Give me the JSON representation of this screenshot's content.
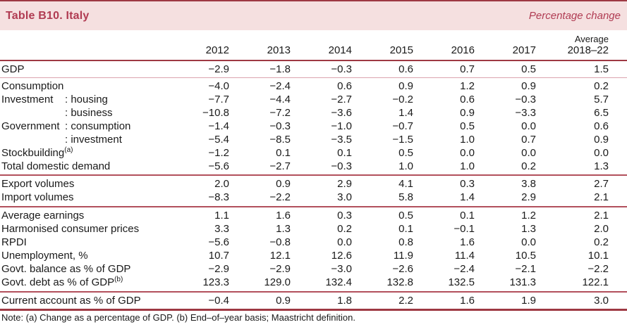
{
  "header": {
    "title": "Table B10. Italy",
    "subtitle": "Percentage change"
  },
  "colors": {
    "accent": "#b03b52",
    "band_bg": "#f5e0e0",
    "line_dark": "#9e3943",
    "line_mid": "#b2505c",
    "line_light": "#dba3ad"
  },
  "table": {
    "year_headers": [
      "2012",
      "2013",
      "2014",
      "2015",
      "2016",
      "2017"
    ],
    "avg_header_line1": "Average",
    "avg_header_line2": "2018–22",
    "sections": [
      {
        "id": "gdp",
        "rows": [
          {
            "label": "GDP",
            "sup": "",
            "sub": "",
            "values": [
              "−2.9",
              "−1.8",
              "−0.3",
              "0.6",
              "0.7",
              "0.5",
              "1.5"
            ]
          }
        ]
      },
      {
        "id": "demand",
        "rows": [
          {
            "label": "Consumption",
            "sup": "",
            "sub": "",
            "values": [
              "−4.0",
              "−2.4",
              "0.6",
              "0.9",
              "1.2",
              "0.9",
              "0.2"
            ]
          },
          {
            "label": "Investment",
            "sup": "",
            "sub": ": housing",
            "values": [
              "−7.7",
              "−4.4",
              "−2.7",
              "−0.2",
              "0.6",
              "−0.3",
              "5.7"
            ]
          },
          {
            "label": "",
            "sup": "",
            "sub": ": business",
            "values": [
              "−10.8",
              "−7.2",
              "−3.6",
              "1.4",
              "0.9",
              "−3.3",
              "6.5"
            ]
          },
          {
            "label": "Government",
            "sup": "",
            "sub": ": consumption",
            "values": [
              "−1.4",
              "−0.3",
              "−1.0",
              "−0.7",
              "0.5",
              "0.0",
              "0.6"
            ]
          },
          {
            "label": "",
            "sup": "",
            "sub": ": investment",
            "values": [
              "−5.4",
              "−8.5",
              "−3.5",
              "−1.5",
              "1.0",
              "0.7",
              "0.9"
            ]
          },
          {
            "label": "Stockbuilding",
            "sup": "(a)",
            "sub": "",
            "values": [
              "−1.2",
              "0.1",
              "0.1",
              "0.5",
              "0.0",
              "0.0",
              "0.0"
            ]
          },
          {
            "label": "Total domestic demand",
            "sup": "",
            "sub": "",
            "values": [
              "−5.6",
              "−2.7",
              "−0.3",
              "1.0",
              "1.0",
              "0.2",
              "1.3"
            ]
          }
        ]
      },
      {
        "id": "trade",
        "rows": [
          {
            "label": "Export volumes",
            "sup": "",
            "sub": "",
            "values": [
              "2.0",
              "0.9",
              "2.9",
              "4.1",
              "0.3",
              "3.8",
              "2.7"
            ]
          },
          {
            "label": "Import volumes",
            "sup": "",
            "sub": "",
            "values": [
              "−8.3",
              "−2.2",
              "3.0",
              "5.8",
              "1.4",
              "2.9",
              "2.1"
            ]
          }
        ]
      },
      {
        "id": "prices",
        "rows": [
          {
            "label": "Average earnings",
            "sup": "",
            "sub": "",
            "values": [
              "1.1",
              "1.6",
              "0.3",
              "0.5",
              "0.1",
              "1.2",
              "2.1"
            ]
          },
          {
            "label": "Harmonised consumer prices",
            "sup": "",
            "sub": "",
            "values": [
              "3.3",
              "1.3",
              "0.2",
              "0.1",
              "−0.1",
              "1.3",
              "2.0"
            ]
          },
          {
            "label": "RPDI",
            "sup": "",
            "sub": "",
            "values": [
              "−5.6",
              "−0.8",
              "0.0",
              "0.8",
              "1.6",
              "0.0",
              "0.2"
            ]
          },
          {
            "label": "Unemployment, %",
            "sup": "",
            "sub": "",
            "values": [
              "10.7",
              "12.1",
              "12.6",
              "11.9",
              "11.4",
              "10.5",
              "10.1"
            ]
          },
          {
            "label": "Govt. balance as % of GDP",
            "sup": "",
            "sub": "",
            "values": [
              "−2.9",
              "−2.9",
              "−3.0",
              "−2.6",
              "−2.4",
              "−2.1",
              "−2.2"
            ]
          },
          {
            "label": "Govt. debt as % of GDP",
            "sup": "(b)",
            "sub": "",
            "values": [
              "123.3",
              "129.0",
              "132.4",
              "132.8",
              "132.5",
              "131.3",
              "122.1"
            ]
          }
        ]
      },
      {
        "id": "current",
        "rows": [
          {
            "label": "Current account as % of GDP",
            "sup": "",
            "sub": "",
            "values": [
              "−0.4",
              "0.9",
              "1.8",
              "2.2",
              "1.6",
              "1.9",
              "3.0"
            ]
          }
        ]
      }
    ]
  },
  "note": "Note: (a) Change as a percentage of GDP. (b) End–of–year basis; Maastricht definition."
}
